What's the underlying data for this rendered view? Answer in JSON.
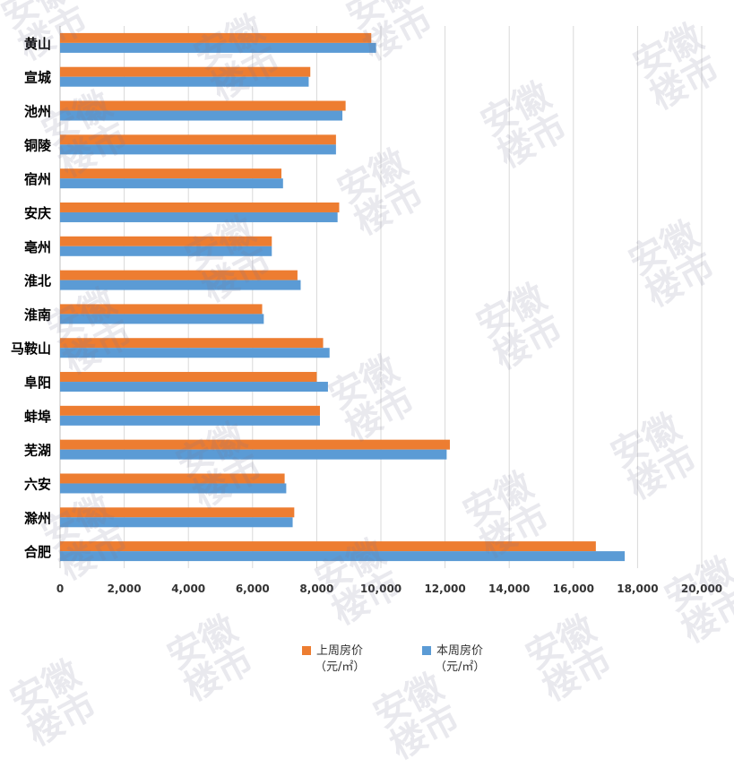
{
  "chart_data": {
    "type": "bar",
    "orientation": "horizontal",
    "categories": [
      "黄山",
      "宣城",
      "池州",
      "铜陵",
      "宿州",
      "安庆",
      "亳州",
      "淮北",
      "淮南",
      "马鞍山",
      "阜阳",
      "蚌埠",
      "芜湖",
      "六安",
      "滁州",
      "合肥"
    ],
    "series": [
      {
        "name": "上周房价",
        "unit": "（元/㎡）",
        "color": "#ED7D31",
        "values": [
          9700,
          7800,
          8900,
          8600,
          6900,
          8700,
          6600,
          7400,
          6300,
          8200,
          8000,
          8100,
          12150,
          7000,
          7300,
          16700
        ]
      },
      {
        "name": "本周房价",
        "unit": "（元/㎡）",
        "color": "#5B9BD5",
        "values": [
          9850,
          7750,
          8800,
          8600,
          6950,
          8650,
          6600,
          7500,
          6350,
          8400,
          8350,
          8100,
          12050,
          7050,
          7250,
          17600
        ]
      }
    ],
    "xlim": [
      0,
      20000
    ],
    "xticks": [
      0,
      2000,
      4000,
      6000,
      8000,
      10000,
      12000,
      14000,
      16000,
      18000,
      20000
    ],
    "xtick_labels": [
      "0",
      "2,000",
      "4,000",
      "6,000",
      "8,000",
      "10,000",
      "12,000",
      "14,000",
      "16,000",
      "18,000",
      "20,000"
    ],
    "grid": "vertical",
    "legend_position": "bottom",
    "title": "",
    "xlabel": "",
    "ylabel": ""
  },
  "watermark": {
    "line1": "安徽",
    "line2": "楼市"
  }
}
